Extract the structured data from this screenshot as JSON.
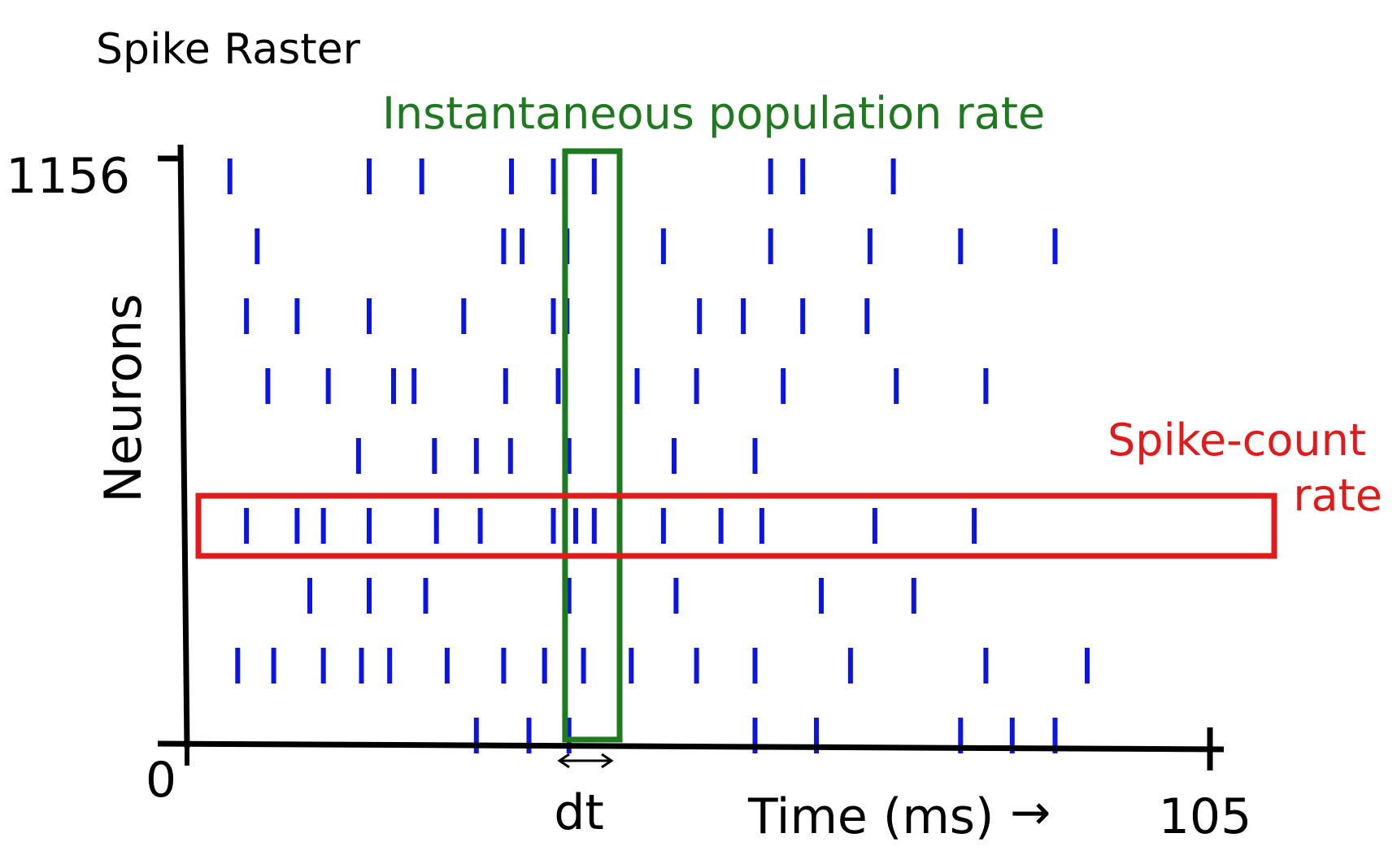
{
  "title": "Spike Raster",
  "x_axis": {
    "label": "Time (ms)",
    "arrow_glyph": "→",
    "min_label": "0",
    "max_label": "105",
    "min": 0,
    "max": 105
  },
  "y_axis": {
    "label": "Neurons",
    "max_label": "1156",
    "max": 1156
  },
  "population_window": {
    "label": "Instantaneous population rate",
    "width_label": "dt",
    "color": "#1f7a1f",
    "t_start": 38.8,
    "t_end": 44.4
  },
  "spike_count_row": {
    "label_line1": "Spike-count",
    "label_line2": "rate",
    "color": "#e41a1a",
    "row": 6
  },
  "spike_color": "#0a14e6",
  "axis_color": "#000000",
  "rows": [
    {
      "row": 1,
      "spikes": [
        4.4,
        18.7,
        24.1,
        33.3,
        37.6,
        41.8,
        59.9,
        63.2,
        72.5
      ]
    },
    {
      "row": 2,
      "spikes": [
        7.2,
        32.5,
        34.4,
        39.0,
        48.9,
        59.9,
        70.1,
        79.4,
        89.1
      ]
    },
    {
      "row": 3,
      "spikes": [
        6.1,
        11.3,
        18.7,
        28.4,
        37.6,
        39.0,
        52.6,
        57.1,
        63.2,
        69.8
      ]
    },
    {
      "row": 4,
      "spikes": [
        8.3,
        14.5,
        21.2,
        23.3,
        32.7,
        38.1,
        46.2,
        52.3,
        61.2,
        72.8,
        82.0
      ]
    },
    {
      "row": 5,
      "spikes": [
        17.6,
        25.4,
        29.7,
        33.2,
        39.2,
        50.0,
        58.3
      ]
    },
    {
      "row": 6,
      "spikes": [
        6.1,
        11.3,
        14.0,
        18.7,
        25.6,
        30.1,
        37.6,
        39.9,
        41.8,
        48.9,
        54.8,
        59.0,
        70.6,
        80.8
      ]
    },
    {
      "row": 7,
      "spikes": [
        12.6,
        18.7,
        24.5,
        39.2,
        50.2,
        65.1,
        74.6
      ]
    },
    {
      "row": 8,
      "spikes": [
        5.2,
        8.9,
        14.0,
        17.9,
        20.8,
        26.7,
        32.5,
        36.7,
        40.7,
        45.6,
        52.3,
        58.3,
        68.1,
        82.0,
        92.4
      ]
    },
    {
      "row": 9,
      "spikes": [
        29.7,
        35.1,
        39.2,
        58.3,
        64.6,
        79.4,
        84.7,
        89.1
      ]
    }
  ]
}
